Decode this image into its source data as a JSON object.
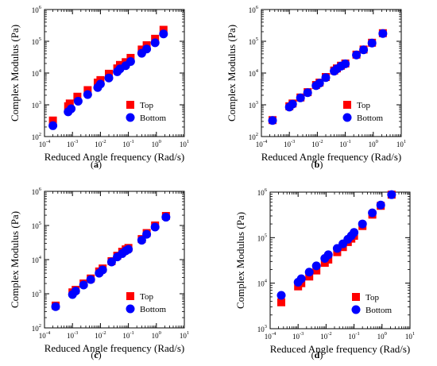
{
  "panel_labels": [
    "(a)",
    "(b)",
    "(c)",
    "(d)"
  ],
  "style": {
    "top_color": "#ff0000",
    "bottom_color": "#0000ff",
    "top_marker": "square",
    "bottom_marker": "circle"
  },
  "chart_data": [
    {
      "type": "scatter",
      "panel": "(a)",
      "xlabel": "Reduced Angle frequency (Rad/s)",
      "ylabel": "Complex Modulus (Pa)",
      "xscale": "log",
      "yscale": "log",
      "xlim": [
        0.0001,
        10
      ],
      "ylim": [
        100,
        1000000
      ],
      "xticks": [
        "10^-4",
        "10^-3",
        "10^-2",
        "10^-1",
        "10^0",
        "10^1"
      ],
      "yticks": [
        "10^2",
        "10^3",
        "10^4",
        "10^5",
        "10^6"
      ],
      "grid": false,
      "legend_position": "bottom-right",
      "series": [
        {
          "name": "Top",
          "color": "#ff0000",
          "marker": "square",
          "x": [
            0.0002,
            0.0007,
            0.0008,
            0.0015,
            0.0035,
            0.008,
            0.01,
            0.02,
            0.04,
            0.05,
            0.08,
            0.12,
            0.3,
            0.45,
            0.9,
            1.8
          ],
          "y": [
            320,
            900,
            1100,
            1800,
            2900,
            5000,
            6000,
            9500,
            14000,
            18000,
            22000,
            30000,
            55000,
            75000,
            120000,
            230000
          ]
        },
        {
          "name": "Bottom",
          "color": "#0000ff",
          "marker": "circle",
          "x": [
            0.0002,
            0.0007,
            0.0009,
            0.0016,
            0.0035,
            0.008,
            0.01,
            0.02,
            0.04,
            0.05,
            0.08,
            0.12,
            0.3,
            0.45,
            0.9,
            1.8
          ],
          "y": [
            220,
            600,
            750,
            1300,
            2100,
            3500,
            4500,
            7000,
            11000,
            13500,
            17000,
            23000,
            42000,
            57000,
            90000,
            170000
          ]
        }
      ]
    },
    {
      "type": "scatter",
      "panel": "(b)",
      "xlabel": "Reduced Angle frequency (Rad/s)",
      "ylabel": "Complex Modulus (Pa)",
      "xscale": "log",
      "yscale": "log",
      "xlim": [
        0.0001,
        10
      ],
      "ylim": [
        100,
        1000000
      ],
      "xticks": [
        "10^-4",
        "10^-3",
        "10^-2",
        "10^-1",
        "10^0",
        "10^1"
      ],
      "yticks": [
        "10^2",
        "10^3",
        "10^4",
        "10^5",
        "10^6"
      ],
      "grid": false,
      "legend_position": "bottom-right",
      "series": [
        {
          "name": "Top",
          "color": "#ff0000",
          "marker": "square",
          "x": [
            0.00025,
            0.001,
            0.0013,
            0.0025,
            0.0045,
            0.009,
            0.012,
            0.02,
            0.04,
            0.05,
            0.07,
            0.1,
            0.25,
            0.45,
            0.9,
            2.2
          ],
          "y": [
            330,
            900,
            1100,
            1700,
            2500,
            4200,
            5000,
            7500,
            12000,
            14000,
            17000,
            20000,
            38000,
            55000,
            90000,
            180000
          ]
        },
        {
          "name": "Bottom",
          "color": "#0000ff",
          "marker": "circle",
          "x": [
            0.00025,
            0.001,
            0.0013,
            0.0025,
            0.0045,
            0.009,
            0.012,
            0.02,
            0.04,
            0.05,
            0.07,
            0.1,
            0.25,
            0.45,
            0.9,
            2.2
          ],
          "y": [
            320,
            850,
            1050,
            1650,
            2400,
            4000,
            4800,
            7200,
            11500,
            13500,
            16500,
            19500,
            37000,
            54000,
            88000,
            175000
          ]
        }
      ]
    },
    {
      "type": "scatter",
      "panel": "(c)",
      "xlabel": "Reduced Angle frequency (Rad/s)",
      "ylabel": "Complex Modulus (Pa)",
      "xscale": "log",
      "yscale": "log",
      "xlim": [
        0.0001,
        10
      ],
      "ylim": [
        100,
        1000000
      ],
      "xticks": [
        "10^-4",
        "10^-3",
        "10^-2",
        "10^-1",
        "10^0",
        "10^1"
      ],
      "yticks": [
        "10^2",
        "10^3",
        "10^4",
        "10^5",
        "10^6"
      ],
      "grid": false,
      "legend_position": "bottom-right",
      "series": [
        {
          "name": "Top",
          "color": "#ff0000",
          "marker": "square",
          "x": [
            0.00025,
            0.001,
            0.0013,
            0.0025,
            0.0045,
            0.009,
            0.012,
            0.025,
            0.04,
            0.06,
            0.08,
            0.1,
            0.3,
            0.45,
            0.9,
            2.2
          ],
          "y": [
            450,
            1100,
            1300,
            2000,
            2800,
            4500,
            5500,
            9000,
            13000,
            17000,
            20000,
            22000,
            40000,
            60000,
            100000,
            190000
          ]
        },
        {
          "name": "Bottom",
          "color": "#0000ff",
          "marker": "circle",
          "x": [
            0.00025,
            0.001,
            0.0013,
            0.0025,
            0.0045,
            0.009,
            0.012,
            0.025,
            0.04,
            0.06,
            0.08,
            0.1,
            0.3,
            0.45,
            0.9,
            2.2
          ],
          "y": [
            420,
            950,
            1200,
            1800,
            2600,
            4000,
            5000,
            8500,
            12000,
            15000,
            18000,
            20000,
            37000,
            55000,
            90000,
            175000
          ]
        }
      ]
    },
    {
      "type": "scatter",
      "panel": "(d)",
      "xlabel": "Reduced Angle frequency (Rad/s)",
      "ylabel": "Complex Modulus (Pa)",
      "xscale": "log",
      "yscale": "log",
      "xlim": [
        0.0001,
        10
      ],
      "ylim": [
        1000,
        1000000
      ],
      "xticks": [
        "10^-4",
        "10^-3",
        "10^-2",
        "10^-1",
        "10^0",
        "10^1"
      ],
      "yticks": [
        "10^3",
        "10^4",
        "10^5",
        "10^6"
      ],
      "grid": false,
      "legend_position": "bottom-right",
      "series": [
        {
          "name": "Top",
          "color": "#ff0000",
          "marker": "square",
          "x": [
            0.00025,
            0.001,
            0.0013,
            0.0025,
            0.0045,
            0.009,
            0.012,
            0.025,
            0.04,
            0.06,
            0.08,
            0.1,
            0.2,
            0.45,
            0.9,
            2.2
          ],
          "y": [
            3800,
            8500,
            10000,
            14000,
            19000,
            28000,
            33000,
            48000,
            62000,
            80000,
            95000,
            110000,
            180000,
            320000,
            500000,
            880000
          ]
        },
        {
          "name": "Bottom",
          "color": "#0000ff",
          "marker": "circle",
          "x": [
            0.00025,
            0.001,
            0.0013,
            0.0025,
            0.0045,
            0.009,
            0.012,
            0.025,
            0.04,
            0.06,
            0.08,
            0.1,
            0.2,
            0.45,
            0.9,
            2.2
          ],
          "y": [
            5400,
            10500,
            12500,
            17500,
            24000,
            35000,
            42000,
            58000,
            73000,
            92000,
            110000,
            130000,
            200000,
            350000,
            520000,
            880000
          ]
        }
      ]
    }
  ]
}
